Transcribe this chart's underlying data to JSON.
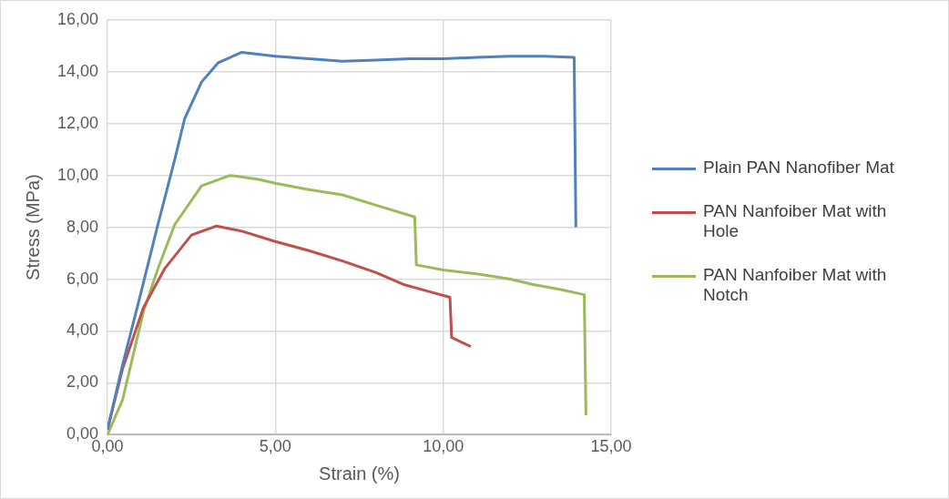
{
  "chart_data": {
    "type": "line",
    "xlabel": "Strain (%)",
    "ylabel": "Stress (MPa)",
    "xlim": [
      0,
      15
    ],
    "ylim": [
      0,
      16
    ],
    "xticks": [
      {
        "value": 0,
        "label": "0,00"
      },
      {
        "value": 5,
        "label": "5,00"
      },
      {
        "value": 10,
        "label": "10,00"
      },
      {
        "value": 15,
        "label": "15,00"
      }
    ],
    "yticks": [
      {
        "value": 0,
        "label": "0,00"
      },
      {
        "value": 2,
        "label": "2,00"
      },
      {
        "value": 4,
        "label": "4,00"
      },
      {
        "value": 6,
        "label": "6,00"
      },
      {
        "value": 8,
        "label": "8,00"
      },
      {
        "value": 10,
        "label": "10,00"
      },
      {
        "value": 12,
        "label": "12,00"
      },
      {
        "value": 14,
        "label": "14,00"
      },
      {
        "value": 16,
        "label": "16,00"
      }
    ],
    "grid": true,
    "legend": "right",
    "marker": "none",
    "line_style": "solid",
    "series": [
      {
        "name": "Plain PAN Nanofiber Mat",
        "color": "#4f81bd",
        "x": [
          0,
          0.45,
          1.0,
          1.5,
          2.0,
          2.3,
          2.8,
          3.3,
          4.0,
          5.0,
          6.0,
          7.0,
          8.0,
          9.0,
          10.0,
          11.0,
          12.0,
          13.0,
          13.9,
          13.95
        ],
        "values": [
          0.2,
          2.7,
          5.5,
          8.1,
          10.6,
          12.2,
          13.6,
          14.35,
          14.75,
          14.6,
          14.5,
          14.4,
          14.45,
          14.5,
          14.5,
          14.55,
          14.6,
          14.6,
          14.55,
          8.0
        ]
      },
      {
        "name": "PAN Nanfoiber Mat with Hole",
        "color": "#c0504d",
        "x": [
          0,
          0.45,
          1.07,
          1.7,
          2.5,
          3.25,
          4.0,
          5.0,
          6.0,
          7.0,
          8.0,
          8.8,
          9.5,
          10.2,
          10.25,
          10.82
        ],
        "values": [
          0.2,
          2.55,
          4.9,
          6.4,
          7.7,
          8.05,
          7.85,
          7.45,
          7.1,
          6.7,
          6.25,
          5.8,
          5.55,
          5.3,
          3.75,
          3.4
        ]
      },
      {
        "name": "PAN Nanfoiber Mat with Notch",
        "color": "#9bbb59",
        "x": [
          0,
          0.45,
          1.07,
          1.5,
          2.0,
          2.8,
          3.65,
          4.5,
          5.0,
          6.0,
          7.0,
          8.0,
          9.15,
          9.2,
          10.0,
          11.0,
          12.0,
          12.65,
          13.5,
          14.2,
          14.25
        ],
        "values": [
          0,
          1.35,
          4.75,
          6.4,
          8.1,
          9.6,
          10.0,
          9.85,
          9.7,
          9.45,
          9.25,
          8.85,
          8.4,
          6.55,
          6.35,
          6.2,
          6.0,
          5.8,
          5.6,
          5.4,
          0.75
        ]
      }
    ]
  }
}
